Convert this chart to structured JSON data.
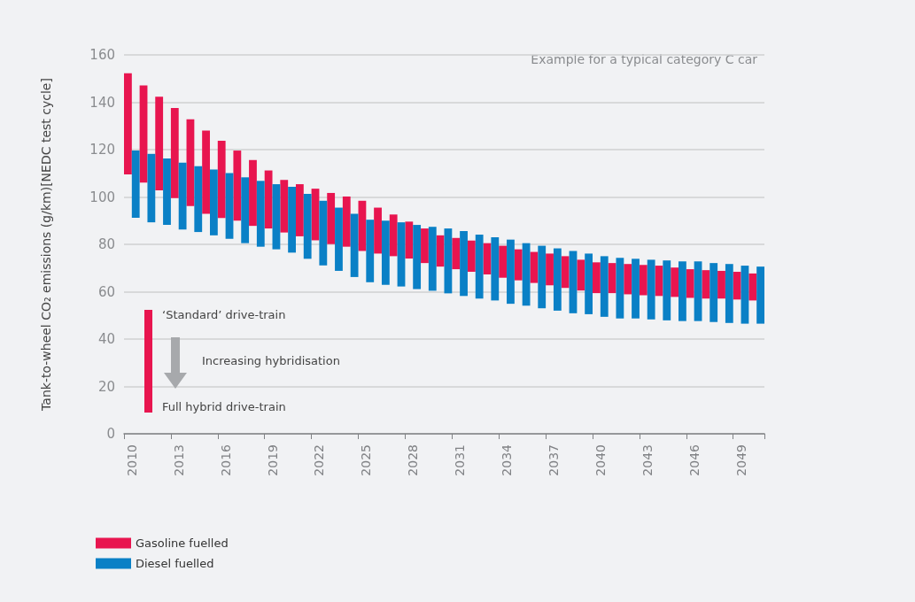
{
  "chart_data": {
    "type": "bar",
    "ylabel": "Tank-to-wheel CO₂ emissions (g/km)[NEDC test cycle]",
    "categories": [
      "2010",
      null,
      null,
      "2013",
      null,
      null,
      "2016",
      null,
      null,
      "2019",
      null,
      null,
      "2022",
      null,
      null,
      "2025",
      null,
      null,
      "2028",
      null,
      null,
      "2031",
      null,
      null,
      "2034",
      null,
      null,
      "2037",
      null,
      null,
      "2040",
      null,
      null,
      "2043",
      null,
      null,
      "2046",
      null,
      null,
      "2049",
      null
    ],
    "series": [
      {
        "name": "Gasoline fuelled",
        "color": "#e8154f",
        "base": [
          109.5,
          106.1,
          102.8,
          99.5,
          96.2,
          92.9,
          91.1,
          90,
          87.8,
          86.7,
          85,
          83.4,
          81.7,
          80.1,
          79,
          77.2,
          76.1,
          75,
          74,
          72.1,
          70.6,
          69.5,
          68.4,
          67.3,
          65.9,
          64.8,
          63.7,
          62.7,
          61.6,
          60.5,
          59.4,
          59.4,
          58.9,
          58.5,
          58.2,
          57.8,
          57.4,
          57.1,
          57.1,
          56.7,
          56.3
        ],
        "values": [
          42.7,
          41,
          39.5,
          38.1,
          36.6,
          35.1,
          32.6,
          29.6,
          27.8,
          24.5,
          22.2,
          22,
          21.8,
          21.6,
          21.2,
          21.2,
          19.4,
          17.6,
          15.6,
          14.6,
          13.2,
          13.2,
          13.2,
          13.2,
          13.5,
          13.1,
          13.1,
          13.4,
          13.4,
          13,
          13,
          12.7,
          12.8,
          12.8,
          12.8,
          12.4,
          12.1,
          12,
          11.7,
          11.7,
          11.4
        ]
      },
      {
        "name": "Diesel fuelled",
        "color": "#0a80c6",
        "base": [
          91.2,
          89.3,
          88.2,
          86.3,
          85.2,
          83.8,
          82.3,
          80.5,
          79,
          77.9,
          76.5,
          73.9,
          71.1,
          68.8,
          66.2,
          64,
          62.9,
          62.2,
          61.1,
          60.4,
          59.3,
          58.2,
          57.1,
          56.3,
          54.9,
          54.1,
          53,
          52,
          50.9,
          50.5,
          49.4,
          48.7,
          48.7,
          48.3,
          47.9,
          47.6,
          47.6,
          47.2,
          46.8,
          46.5,
          46.5
        ],
        "values": [
          28.4,
          28.9,
          28.1,
          28.2,
          27.8,
          27.8,
          27.8,
          27.8,
          27.8,
          27.5,
          27.8,
          27.4,
          27.3,
          26.7,
          26.7,
          26.4,
          27.1,
          27.1,
          27.1,
          27,
          27.4,
          27.4,
          27,
          26.7,
          27.1,
          26.4,
          26.4,
          26.3,
          26.3,
          25.6,
          25.6,
          25.6,
          25.2,
          25.2,
          25.3,
          25.2,
          25.2,
          24.9,
          24.9,
          24.5,
          24.1
        ]
      }
    ],
    "ylim": [
      0,
      160
    ],
    "yticks": [
      0,
      20,
      40,
      60,
      80,
      100,
      120,
      140,
      160
    ],
    "grid": "y",
    "legend": "bottom left",
    "annotations": [
      "Example for a typical category C car",
      "‘Standard’ drive-train",
      "Increasing hybridisation",
      "Full hybrid drive-train"
    ]
  }
}
